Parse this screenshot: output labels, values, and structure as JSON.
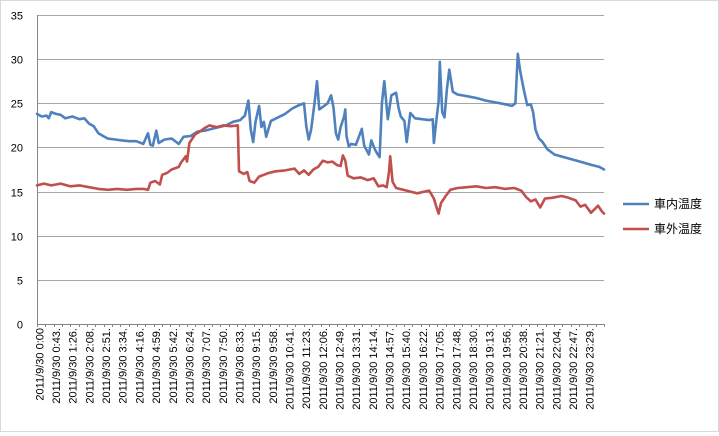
{
  "chart_data": {
    "type": "line",
    "title": "",
    "xlabel": "",
    "ylabel": "",
    "ylim": [
      0,
      35
    ],
    "yticks": [
      0,
      5,
      10,
      15,
      20,
      25,
      30,
      35
    ],
    "grid": "horizontal",
    "legend_position": "right",
    "x_tick_labels": [
      "2011/9/30 0:00",
      "2011/9/30 0:43",
      "2011/9/30 1:26",
      "2011/9/30 2:08",
      "2011/9/30 2:51",
      "2011/9/30 3:34",
      "2011/9/30 4:16",
      "2011/9/30 4:59",
      "2011/9/30 5:42",
      "2011/9/30 6:24",
      "2011/9/30 7:07",
      "2011/9/30 7:50",
      "2011/9/30 8:33",
      "2011/9/30 9:15",
      "2011/9/30 9:58",
      "2011/9/30 10:41",
      "2011/9/30 11:23",
      "2011/9/30 12:06",
      "2011/9/30 12:49",
      "2011/9/30 13:31",
      "2011/9/30 14:14",
      "2011/9/30 14:57",
      "2011/9/30 15:40",
      "2011/9/30 16:22",
      "2011/9/30 17:05",
      "2011/9/30 17:48",
      "2011/9/30 18:30",
      "2011/9/30 19:13",
      "2011/9/30 19:56",
      "2011/9/30 20:38",
      "2011/9/30 21:21",
      "2011/9/30 22:04",
      "2011/9/30 22:47",
      "2011/9/30 23:29"
    ],
    "x_tick_labels_display": [
      "2011/9/30 0:00",
      "2011/9/30 0:43.",
      "2011/9/30 1:26.",
      "2011/9/30 2:08.",
      "2011/9/30 2:51.",
      "2011/9/30 3:34.",
      "2011/9/30 4:16.",
      "2011/9/30 4:59.",
      "2011/9/30 5:42.",
      "2011/9/30 6:24.",
      "2011/9/30 7:07.",
      "2011/9/30 7:50.",
      "2011/9/30 8:33.",
      "2011/9/30 9:15.",
      "2011/9/30 9:58.",
      "2011/9/30 10:41.",
      "2011/9/30 11:23.",
      "2011/9/30 12:06.",
      "2011/9/30 12:49.",
      "2011/9/30 13:31.",
      "2011/9/30 14:14.",
      "2011/9/30 14:57.",
      "2011/9/30 15:40.",
      "2011/9/30 16:22.",
      "2011/9/30 17:05.",
      "2011/9/30 17:48.",
      "2011/9/30 18:30.",
      "2011/9/30 19:13.",
      "2011/9/30 19:56.",
      "2011/9/30 20:38.",
      "2011/9/30 21:21.",
      "2011/9/30 22:04.",
      "2011/9/30 22:47.",
      "2011/9/30 23:29."
    ],
    "series": [
      {
        "name": "車内温度",
        "color": "#4f81bd",
        "points": [
          [
            0,
            23.8
          ],
          [
            0.2,
            23.5
          ],
          [
            0.4,
            23.6
          ],
          [
            0.5,
            23.3
          ],
          [
            0.6,
            24.0
          ],
          [
            0.8,
            23.8
          ],
          [
            1.0,
            23.7
          ],
          [
            1.2,
            23.3
          ],
          [
            1.5,
            23.5
          ],
          [
            1.8,
            23.2
          ],
          [
            2.0,
            23.3
          ],
          [
            2.2,
            22.7
          ],
          [
            2.4,
            22.4
          ],
          [
            2.6,
            21.6
          ],
          [
            2.8,
            21.3
          ],
          [
            3.0,
            21.0
          ],
          [
            3.3,
            20.9
          ],
          [
            3.6,
            20.8
          ],
          [
            3.9,
            20.7
          ],
          [
            4.2,
            20.7
          ],
          [
            4.5,
            20.4
          ],
          [
            4.7,
            21.6
          ],
          [
            4.8,
            20.3
          ],
          [
            4.9,
            20.2
          ],
          [
            5.05,
            21.9
          ],
          [
            5.15,
            20.5
          ],
          [
            5.4,
            20.9
          ],
          [
            5.7,
            21.0
          ],
          [
            6.0,
            20.4
          ],
          [
            6.2,
            21.2
          ],
          [
            6.5,
            21.3
          ],
          [
            6.8,
            21.8
          ],
          [
            7.1,
            21.9
          ],
          [
            7.4,
            22.1
          ],
          [
            7.7,
            22.3
          ],
          [
            8.0,
            22.5
          ],
          [
            8.3,
            22.9
          ],
          [
            8.6,
            23.1
          ],
          [
            8.8,
            23.6
          ],
          [
            8.95,
            25.3
          ],
          [
            9.05,
            22.0
          ],
          [
            9.15,
            20.6
          ],
          [
            9.25,
            22.9
          ],
          [
            9.4,
            24.7
          ],
          [
            9.5,
            22.3
          ],
          [
            9.6,
            22.9
          ],
          [
            9.7,
            21.2
          ],
          [
            9.8,
            22.1
          ],
          [
            9.9,
            23.0
          ],
          [
            10.2,
            23.4
          ],
          [
            10.5,
            23.8
          ],
          [
            10.8,
            24.4
          ],
          [
            11.1,
            24.8
          ],
          [
            11.3,
            25.0
          ],
          [
            11.4,
            22.4
          ],
          [
            11.5,
            20.9
          ],
          [
            11.6,
            22.0
          ],
          [
            11.75,
            25.1
          ],
          [
            11.85,
            27.5
          ],
          [
            11.95,
            24.3
          ],
          [
            12.1,
            24.6
          ],
          [
            12.3,
            25.0
          ],
          [
            12.45,
            25.9
          ],
          [
            12.55,
            24.5
          ],
          [
            12.65,
            21.6
          ],
          [
            12.75,
            20.9
          ],
          [
            12.85,
            22.3
          ],
          [
            13.0,
            23.5
          ],
          [
            13.05,
            24.3
          ],
          [
            13.1,
            21.3
          ],
          [
            13.2,
            20.1
          ],
          [
            13.3,
            20.4
          ],
          [
            13.5,
            20.3
          ],
          [
            13.65,
            21.4
          ],
          [
            13.75,
            22.1
          ],
          [
            13.85,
            20.2
          ],
          [
            13.95,
            19.7
          ],
          [
            14.05,
            19.2
          ],
          [
            14.15,
            20.8
          ],
          [
            14.3,
            19.8
          ],
          [
            14.4,
            19.3
          ],
          [
            14.5,
            18.9
          ],
          [
            14.55,
            21.8
          ],
          [
            14.6,
            25.0
          ],
          [
            14.7,
            27.5
          ],
          [
            14.85,
            23.2
          ],
          [
            15.0,
            25.9
          ],
          [
            15.2,
            26.2
          ],
          [
            15.3,
            24.5
          ],
          [
            15.4,
            23.5
          ],
          [
            15.55,
            23.0
          ],
          [
            15.65,
            20.6
          ],
          [
            15.8,
            23.9
          ],
          [
            16.0,
            23.3
          ],
          [
            16.3,
            23.2
          ],
          [
            16.6,
            23.1
          ],
          [
            16.75,
            23.2
          ],
          [
            16.8,
            20.5
          ],
          [
            16.9,
            23.0
          ],
          [
            17.0,
            25.2
          ],
          [
            17.05,
            29.7
          ],
          [
            17.15,
            24.0
          ],
          [
            17.25,
            23.4
          ],
          [
            17.35,
            26.6
          ],
          [
            17.45,
            28.8
          ],
          [
            17.6,
            26.3
          ],
          [
            17.8,
            26.0
          ],
          [
            18.2,
            25.8
          ],
          [
            18.6,
            25.6
          ],
          [
            19.0,
            25.3
          ],
          [
            19.4,
            25.1
          ],
          [
            19.8,
            24.9
          ],
          [
            20.1,
            24.7
          ],
          [
            20.25,
            25.0
          ],
          [
            20.35,
            30.6
          ],
          [
            20.45,
            28.7
          ],
          [
            20.6,
            26.6
          ],
          [
            20.75,
            24.8
          ],
          [
            20.9,
            24.9
          ],
          [
            21.0,
            24.0
          ],
          [
            21.1,
            22.0
          ],
          [
            21.25,
            21.0
          ],
          [
            21.4,
            20.6
          ],
          [
            21.6,
            19.8
          ],
          [
            21.9,
            19.2
          ],
          [
            22.3,
            18.9
          ],
          [
            22.7,
            18.6
          ],
          [
            23.1,
            18.3
          ],
          [
            23.5,
            18.0
          ],
          [
            23.8,
            17.8
          ],
          [
            24.0,
            17.5
          ]
        ]
      },
      {
        "name": "車外温度",
        "color": "#c0504d",
        "points": [
          [
            0,
            15.7
          ],
          [
            0.3,
            15.9
          ],
          [
            0.6,
            15.7
          ],
          [
            1.0,
            15.9
          ],
          [
            1.4,
            15.6
          ],
          [
            1.8,
            15.7
          ],
          [
            2.2,
            15.5
          ],
          [
            2.6,
            15.3
          ],
          [
            3.0,
            15.2
          ],
          [
            3.4,
            15.3
          ],
          [
            3.8,
            15.2
          ],
          [
            4.2,
            15.3
          ],
          [
            4.5,
            15.3
          ],
          [
            4.7,
            15.2
          ],
          [
            4.8,
            16.0
          ],
          [
            5.0,
            16.2
          ],
          [
            5.2,
            15.8
          ],
          [
            5.3,
            16.9
          ],
          [
            5.5,
            17.1
          ],
          [
            5.7,
            17.5
          ],
          [
            6.0,
            17.8
          ],
          [
            6.1,
            18.3
          ],
          [
            6.3,
            19.0
          ],
          [
            6.35,
            18.4
          ],
          [
            6.45,
            20.5
          ],
          [
            6.7,
            21.5
          ],
          [
            6.9,
            21.8
          ],
          [
            7.1,
            22.2
          ],
          [
            7.3,
            22.5
          ],
          [
            7.6,
            22.3
          ],
          [
            7.9,
            22.5
          ],
          [
            8.2,
            22.4
          ],
          [
            8.5,
            22.5
          ],
          [
            8.55,
            17.3
          ],
          [
            8.75,
            17.0
          ],
          [
            8.9,
            17.2
          ],
          [
            9.0,
            16.2
          ],
          [
            9.2,
            16.0
          ],
          [
            9.4,
            16.7
          ],
          [
            9.6,
            16.9
          ],
          [
            9.8,
            17.1
          ],
          [
            10.1,
            17.3
          ],
          [
            10.5,
            17.4
          ],
          [
            10.9,
            17.6
          ],
          [
            11.1,
            17.0
          ],
          [
            11.3,
            17.4
          ],
          [
            11.5,
            16.9
          ],
          [
            11.7,
            17.5
          ],
          [
            11.9,
            17.8
          ],
          [
            12.1,
            18.5
          ],
          [
            12.3,
            18.3
          ],
          [
            12.5,
            18.4
          ],
          [
            12.7,
            18.0
          ],
          [
            12.85,
            17.9
          ],
          [
            12.95,
            19.1
          ],
          [
            13.05,
            18.5
          ],
          [
            13.15,
            16.8
          ],
          [
            13.4,
            16.5
          ],
          [
            13.7,
            16.6
          ],
          [
            14.0,
            16.3
          ],
          [
            14.25,
            16.5
          ],
          [
            14.45,
            15.6
          ],
          [
            14.65,
            15.7
          ],
          [
            14.8,
            15.5
          ],
          [
            14.9,
            17.2
          ],
          [
            14.95,
            19.0
          ],
          [
            15.05,
            16.1
          ],
          [
            15.2,
            15.4
          ],
          [
            15.5,
            15.2
          ],
          [
            15.8,
            15.0
          ],
          [
            16.1,
            14.8
          ],
          [
            16.4,
            15.0
          ],
          [
            16.6,
            15.1
          ],
          [
            16.8,
            14.2
          ],
          [
            16.9,
            13.3
          ],
          [
            17.0,
            12.5
          ],
          [
            17.1,
            13.7
          ],
          [
            17.3,
            14.5
          ],
          [
            17.5,
            15.2
          ],
          [
            17.8,
            15.4
          ],
          [
            18.2,
            15.5
          ],
          [
            18.6,
            15.6
          ],
          [
            19.0,
            15.4
          ],
          [
            19.4,
            15.5
          ],
          [
            19.8,
            15.3
          ],
          [
            20.2,
            15.4
          ],
          [
            20.5,
            15.1
          ],
          [
            20.7,
            14.4
          ],
          [
            20.9,
            13.9
          ],
          [
            21.1,
            14.1
          ],
          [
            21.3,
            13.2
          ],
          [
            21.5,
            14.2
          ],
          [
            21.8,
            14.3
          ],
          [
            22.2,
            14.5
          ],
          [
            22.5,
            14.3
          ],
          [
            22.8,
            14.0
          ],
          [
            23.0,
            13.3
          ],
          [
            23.2,
            13.5
          ],
          [
            23.45,
            12.6
          ],
          [
            23.6,
            13.0
          ],
          [
            23.75,
            13.4
          ],
          [
            23.9,
            12.8
          ],
          [
            24.0,
            12.5
          ]
        ]
      }
    ]
  }
}
